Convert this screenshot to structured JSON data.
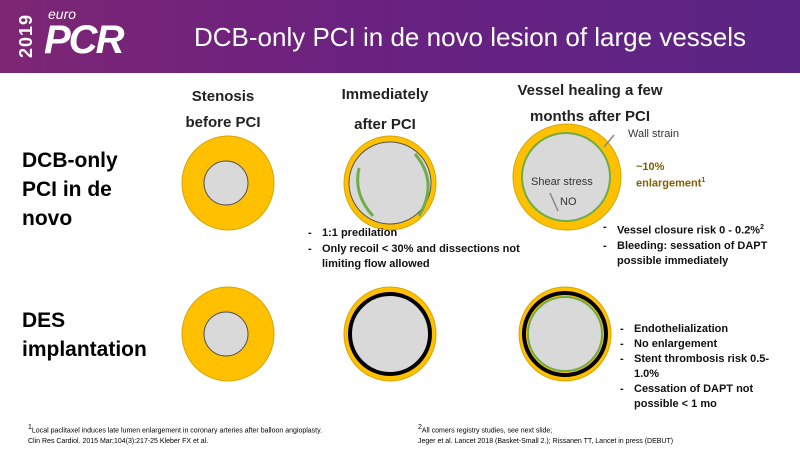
{
  "logo": {
    "year": "2019",
    "euro": "euro",
    "pcr": "PCR"
  },
  "title": "DCB-only PCI in de novo lesion of large vessels",
  "columns": {
    "stenosis": [
      "Stenosis",
      "before PCI"
    ],
    "immediately": [
      "Immediately",
      "after PCI"
    ],
    "healing": [
      "Vessel healing a few",
      "months after PCI"
    ]
  },
  "rows": {
    "dcb": [
      "DCB-only",
      "PCI in de",
      "novo"
    ],
    "des": [
      "DES",
      "implantation"
    ]
  },
  "annotations": {
    "wall_strain": "Wall strain",
    "enlargement_pct": "~10%",
    "enlargement": "enlargement",
    "enlargement_sup": "1",
    "shear_stress": "Shear stress",
    "no": "NO"
  },
  "dcb_immediate_bullets": [
    "1:1 predilation",
    "Only recoil < 30% and dissections not limiting flow allowed"
  ],
  "dcb_healing_bullets": {
    "closure": "Vessel closure risk 0 - 0.2%",
    "closure_sup": "2",
    "bleeding": "Bleeding: sessation of DAPT possible immediately"
  },
  "des_bullets": [
    "Endothelialization",
    "No enlargement",
    "Stent thrombosis risk 0.5-1.0%",
    "Cessation of DAPT not possible < 1 mo"
  ],
  "references": {
    "left_sup": "1",
    "left_line1": "Local paclitaxel induces late lumen enlargement in coronary arteries after balloon angioplasty.",
    "left_line2": "Clin Res Cardiol. 2015 Mar;104(3):217-25 Kleber FX et al.",
    "right_sup": "2",
    "right_line1": "All comers registry studies, see next slide;",
    "right_line2": "Jeger et al. Lancet 2018 (Basket-Small 2.); Rissanen TT, Lancet in press (DEBUT)"
  },
  "colors": {
    "vessel": "#ffc000",
    "lumen": "#d9d9d9",
    "neointima": "#70ad47",
    "stent": "#000000",
    "header": "#6a2180"
  }
}
